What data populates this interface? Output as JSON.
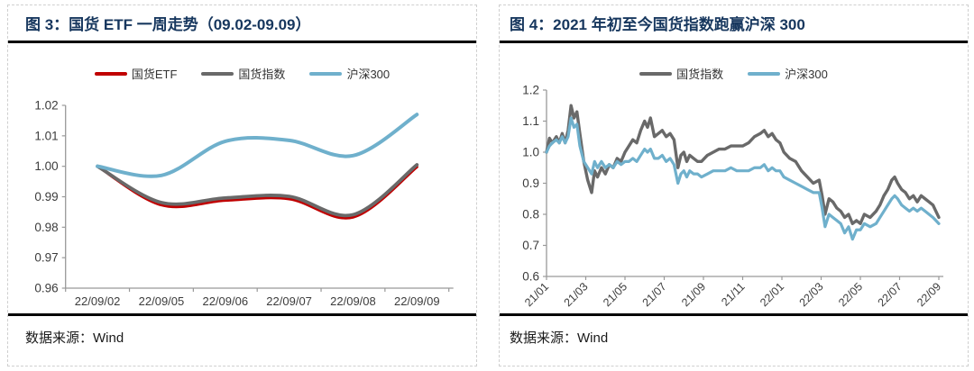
{
  "panels": [
    {
      "title": "图 3：国货 ETF 一周走势（09.02-09.09）",
      "source": "数据来源：Wind"
    },
    {
      "title": "图 4：2021 年初至今国货指数跑赢沪深 300",
      "source": "数据来源：Wind"
    }
  ],
  "colors": {
    "title_navy": "#17375E",
    "etf_red": "#C00000",
    "index_gray": "#696969",
    "hs300_blue": "#6FB0CC",
    "axis_gray": "#999999"
  },
  "chart_data": [
    {
      "type": "line",
      "title": "国货 ETF 一周走势（09.02-09.09）",
      "categories": [
        "22/09/02",
        "22/09/05",
        "22/09/06",
        "22/09/07",
        "22/09/08",
        "22/09/09"
      ],
      "series": [
        {
          "name": "国货ETF",
          "color": "#C00000",
          "width": 3.2,
          "values": [
            1.0,
            0.9873,
            0.9888,
            0.9893,
            0.9833,
            0.9998
          ]
        },
        {
          "name": "国货指数",
          "color": "#696969",
          "width": 3.8,
          "values": [
            1.0,
            0.9881,
            0.9896,
            0.9901,
            0.9841,
            1.0005
          ]
        },
        {
          "name": "沪深300",
          "color": "#6FB0CC",
          "width": 4.0,
          "values": [
            1.0,
            0.997,
            1.0082,
            1.0085,
            1.0035,
            1.017
          ]
        }
      ],
      "ylim": [
        0.96,
        1.02
      ],
      "yticks": [
        0.96,
        0.97,
        0.98,
        0.99,
        1.0,
        1.01,
        1.02
      ],
      "y_decimals": 2,
      "smooth": true,
      "grid": false,
      "legend_position": "top"
    },
    {
      "type": "line",
      "title": "2021 年初至今国货指数跑赢沪深 300",
      "xlim": [
        0,
        20
      ],
      "xticks": [
        0,
        2,
        4,
        6,
        8,
        10,
        12,
        14,
        16,
        18,
        20
      ],
      "xtick_labels": [
        "21/01",
        "21/03",
        "21/05",
        "21/07",
        "21/09",
        "21/11",
        "22/01",
        "22/03",
        "22/05",
        "22/07",
        "22/09"
      ],
      "xtick_rotation": -45,
      "x": [
        0,
        0.15,
        0.3,
        0.5,
        0.65,
        0.8,
        0.95,
        1.1,
        1.25,
        1.4,
        1.55,
        1.7,
        1.9,
        2.1,
        2.3,
        2.45,
        2.6,
        2.8,
        3.0,
        3.2,
        3.4,
        3.6,
        3.8,
        4.0,
        4.2,
        4.4,
        4.6,
        4.8,
        5.0,
        5.15,
        5.3,
        5.5,
        5.7,
        5.9,
        6.1,
        6.3,
        6.5,
        6.7,
        6.85,
        7.0,
        7.15,
        7.3,
        7.5,
        7.7,
        7.9,
        8.2,
        8.5,
        8.8,
        9.1,
        9.4,
        9.7,
        10.0,
        10.3,
        10.6,
        10.9,
        11.1,
        11.3,
        11.5,
        11.7,
        11.9,
        12.1,
        12.4,
        12.7,
        13.0,
        13.3,
        13.6,
        13.9,
        14.05,
        14.2,
        14.4,
        14.6,
        14.8,
        15.0,
        15.2,
        15.4,
        15.6,
        15.8,
        16.0,
        16.2,
        16.5,
        16.8,
        17.0,
        17.2,
        17.4,
        17.6,
        17.75,
        17.9,
        18.1,
        18.3,
        18.5,
        18.7,
        18.9,
        19.1,
        19.3,
        19.5,
        19.7,
        19.85,
        20.0
      ],
      "series": [
        {
          "name": "国货指数",
          "color": "#696969",
          "width": 3.4,
          "values": [
            1.0,
            1.045,
            1.03,
            1.05,
            1.03,
            1.06,
            1.03,
            1.07,
            1.15,
            1.11,
            1.13,
            1.06,
            0.97,
            0.91,
            0.87,
            0.94,
            0.92,
            0.95,
            0.93,
            0.96,
            0.95,
            0.98,
            0.97,
            1.0,
            1.02,
            1.04,
            1.03,
            1.07,
            1.1,
            1.08,
            1.11,
            1.05,
            1.06,
            1.07,
            1.05,
            1.06,
            1.04,
            0.95,
            0.99,
            1.0,
            0.97,
            0.99,
            0.98,
            0.97,
            0.97,
            0.99,
            1.0,
            1.01,
            1.01,
            1.02,
            1.02,
            1.02,
            1.03,
            1.05,
            1.06,
            1.07,
            1.05,
            1.06,
            1.04,
            1.03,
            1.0,
            0.98,
            0.97,
            0.94,
            0.92,
            0.9,
            0.91,
            0.86,
            0.8,
            0.85,
            0.84,
            0.82,
            0.81,
            0.79,
            0.8,
            0.77,
            0.78,
            0.77,
            0.8,
            0.79,
            0.81,
            0.83,
            0.86,
            0.88,
            0.91,
            0.92,
            0.9,
            0.88,
            0.87,
            0.85,
            0.86,
            0.84,
            0.86,
            0.85,
            0.84,
            0.83,
            0.81,
            0.79
          ]
        },
        {
          "name": "沪深300",
          "color": "#6FB0CC",
          "width": 3.2,
          "values": [
            1.0,
            1.02,
            1.03,
            1.04,
            1.03,
            1.05,
            1.03,
            1.05,
            1.11,
            1.08,
            1.09,
            1.02,
            0.97,
            0.95,
            0.93,
            0.97,
            0.95,
            0.97,
            0.95,
            0.96,
            0.95,
            0.97,
            0.96,
            0.97,
            0.97,
            0.98,
            0.97,
            0.99,
            1.01,
            1.0,
            1.01,
            0.98,
            0.98,
            0.99,
            0.97,
            0.98,
            0.96,
            0.9,
            0.93,
            0.94,
            0.92,
            0.94,
            0.93,
            0.93,
            0.92,
            0.93,
            0.94,
            0.94,
            0.94,
            0.95,
            0.94,
            0.94,
            0.94,
            0.95,
            0.95,
            0.96,
            0.94,
            0.95,
            0.94,
            0.94,
            0.92,
            0.91,
            0.9,
            0.89,
            0.88,
            0.87,
            0.87,
            0.82,
            0.76,
            0.8,
            0.79,
            0.78,
            0.77,
            0.74,
            0.76,
            0.72,
            0.75,
            0.75,
            0.77,
            0.76,
            0.77,
            0.79,
            0.81,
            0.83,
            0.85,
            0.86,
            0.85,
            0.83,
            0.82,
            0.81,
            0.82,
            0.81,
            0.82,
            0.81,
            0.8,
            0.79,
            0.78,
            0.77
          ]
        }
      ],
      "ylim": [
        0.6,
        1.2
      ],
      "yticks": [
        0.6,
        0.7,
        0.8,
        0.9,
        1.0,
        1.1,
        1.2
      ],
      "y_decimals": 1,
      "smooth": false,
      "grid": false,
      "legend_position": "top"
    }
  ]
}
